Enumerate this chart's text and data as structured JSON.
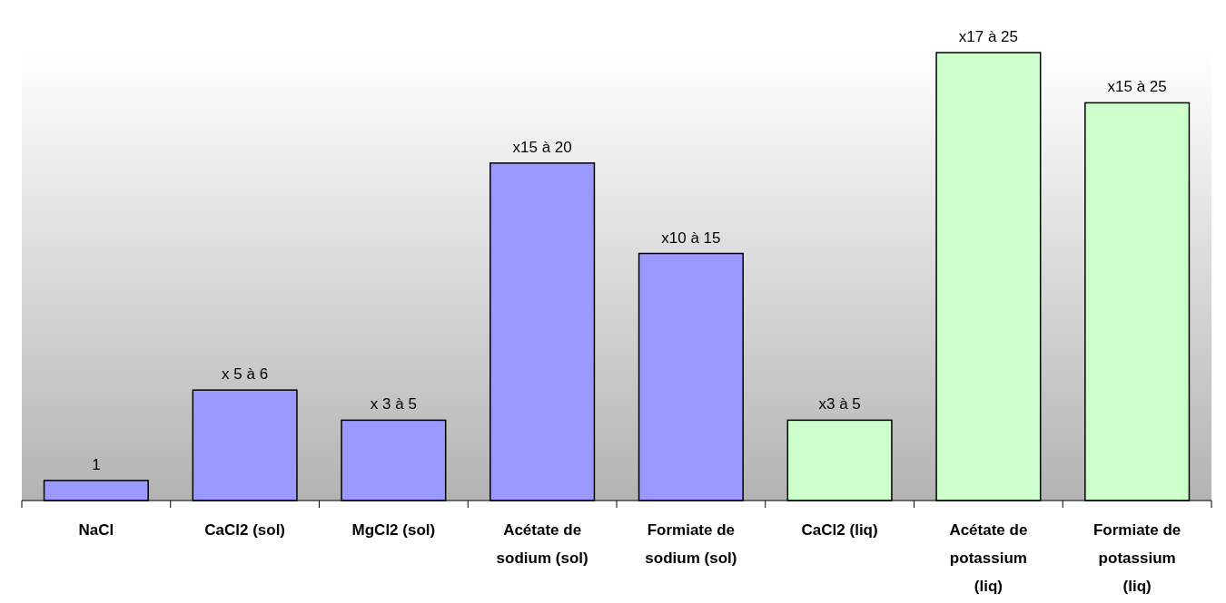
{
  "chart_data": {
    "type": "bar",
    "tick_labels": "x",
    "categories": [
      "NaCl",
      "CaCl2 (sol)",
      "MgCl2 (sol)",
      "Acétate de sodium (sol)",
      "Formiate de sodium (sol)",
      "CaCl2 (liq)",
      "Acétate de potassium (liq)",
      "Formiate de potassium (liq)"
    ],
    "values": [
      1,
      5.5,
      4,
      16.8,
      12.3,
      4,
      22.3,
      19.8
    ],
    "colors": [
      "#9999ff",
      "#9999ff",
      "#9999ff",
      "#9999ff",
      "#9999ff",
      "#ccffcc",
      "#ccffcc",
      "#ccffcc"
    ],
    "value_labels": [
      "1",
      "x 5 à 6",
      "x 3 à 5",
      "x15 à 20",
      "x10 à 15",
      "x3 à 5",
      "x17 à 25",
      "x15 à 25"
    ]
  }
}
